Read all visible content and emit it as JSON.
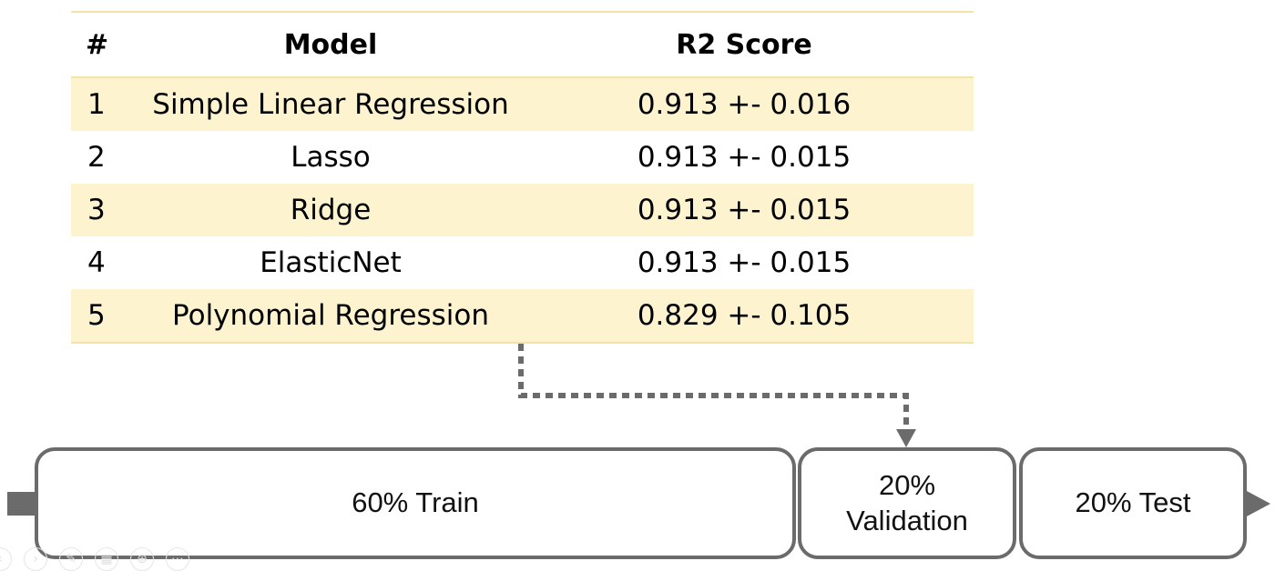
{
  "table": {
    "headers": {
      "num": "#",
      "model": "Model",
      "score": "R2 Score"
    },
    "rows": [
      {
        "num": "1",
        "model": "Simple Linear Regression",
        "score": "0.913 +- 0.016"
      },
      {
        "num": "2",
        "model": "Lasso",
        "score": "0.913 +- 0.015"
      },
      {
        "num": "3",
        "model": "Ridge",
        "score": "0.913 +- 0.015"
      },
      {
        "num": "4",
        "model": "ElasticNet",
        "score": "0.913 +- 0.015"
      },
      {
        "num": "5",
        "model": "Polynomial Regression",
        "score": "0.829 +- 0.105"
      }
    ]
  },
  "split": {
    "train": "60% Train",
    "validation_line1": "20%",
    "validation_line2": "Validation",
    "test": "20% Test"
  },
  "colors": {
    "row_shade": "#fdf3cf",
    "rule": "#f2e3a6",
    "box_border": "#6b6b6b"
  },
  "toolbar": {
    "icons": [
      "prev-icon",
      "next-icon",
      "pen-icon",
      "grid-icon",
      "zoom-icon",
      "more-icon"
    ],
    "glyphs": [
      "‹",
      "›",
      "✎",
      "▦",
      "⊕",
      "⋯"
    ]
  }
}
